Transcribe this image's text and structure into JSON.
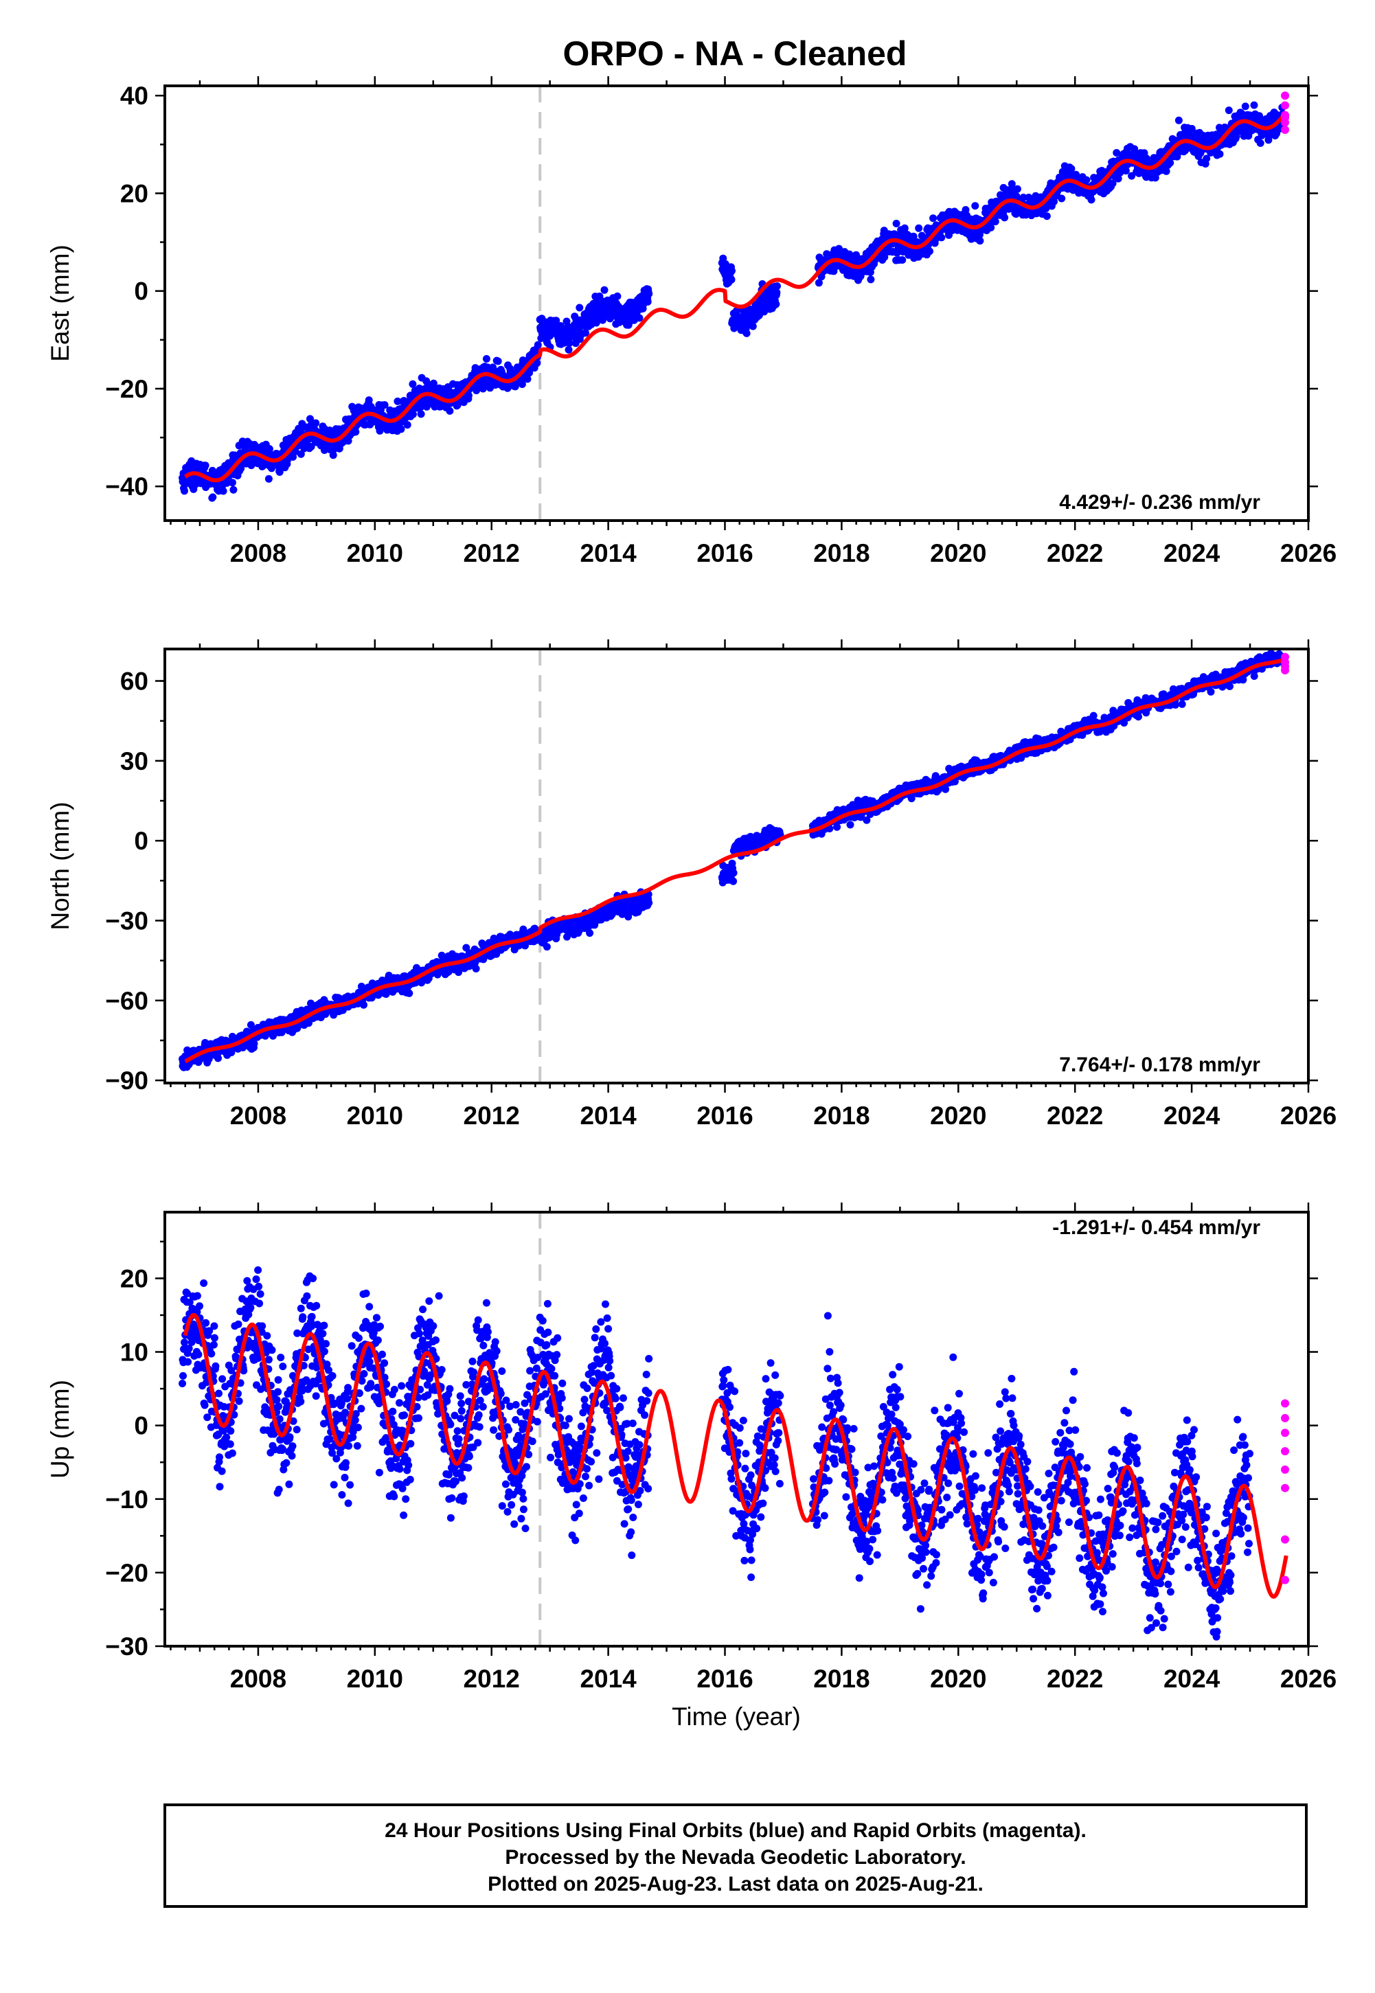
{
  "title": "ORPO  - NA - Cleaned",
  "colors": {
    "final_orbits": "#0000ff",
    "rapid_orbits": "#ff00ff",
    "model": "#ff0000",
    "equipment_change_line": "#c8c8c8"
  },
  "chart_data": [
    {
      "type": "scatter",
      "name": "east",
      "ylabel": "East (mm)",
      "xlabel": "",
      "xlim": [
        2006.4,
        2026.0
      ],
      "ylim": [
        -47,
        42
      ],
      "yticks": [
        -40,
        -20,
        0,
        20,
        40
      ],
      "xticks": [
        2008,
        2010,
        2012,
        2014,
        2016,
        2018,
        2020,
        2022,
        2024,
        2026
      ],
      "rate_text": "4.429+/- 0.236 mm/yr",
      "rate_position": "bottom-right",
      "equipment_change_year": 2012.83,
      "model": {
        "start": 2006.75,
        "end": 2025.62,
        "slope": 4.06,
        "intercept": -39.4,
        "ref_year": 2006.75,
        "amplitude": 1.6,
        "phase": 2.6,
        "offsets": [
          {
            "at": 2012.83,
            "value": 1.0
          },
          {
            "at": 2016.0,
            "value": -2.0
          }
        ]
      },
      "data_segments": [
        {
          "start": 2006.7,
          "end": 2012.8,
          "step": 0.006,
          "noise": 1.3,
          "shift": 0.0
        },
        {
          "start": 2012.83,
          "end": 2014.7,
          "step": 0.006,
          "noise": 1.3,
          "shift": 4.5
        },
        {
          "start": 2015.95,
          "end": 2016.12,
          "step": 0.006,
          "noise": 1.3,
          "shift": 5.5
        },
        {
          "start": 2016.12,
          "end": 2016.9,
          "step": 0.006,
          "noise": 1.3,
          "shift": -3.0
        },
        {
          "start": 2017.6,
          "end": 2025.58,
          "step": 0.006,
          "noise": 1.3,
          "shift": 0.0
        }
      ],
      "rapid_points": [
        [
          2025.6,
          40.0
        ],
        [
          2025.6,
          38.0
        ],
        [
          2025.6,
          36.0
        ],
        [
          2025.6,
          34.5
        ],
        [
          2025.6,
          33.0
        ],
        [
          2025.6,
          35.5
        ]
      ]
    },
    {
      "type": "scatter",
      "name": "north",
      "ylabel": "North (mm)",
      "xlabel": "",
      "xlim": [
        2006.4,
        2026.0
      ],
      "ylim": [
        -91,
        72
      ],
      "yticks": [
        -90,
        -60,
        -30,
        0,
        30,
        60
      ],
      "xticks": [
        2008,
        2010,
        2012,
        2014,
        2016,
        2018,
        2020,
        2022,
        2024,
        2026
      ],
      "rate_text": "7.764+/- 0.178 mm/yr",
      "rate_position": "bottom-right",
      "equipment_change_year": 2012.83,
      "model": {
        "start": 2006.75,
        "end": 2025.62,
        "slope": 7.95,
        "intercept": -82.5,
        "ref_year": 2006.75,
        "amplitude": 0.7,
        "phase": 1.0,
        "offsets": [
          {
            "at": 2012.83,
            "value": 1.5
          }
        ]
      },
      "data_segments": [
        {
          "start": 2006.7,
          "end": 2012.8,
          "step": 0.006,
          "noise": 1.5,
          "shift": 0.0
        },
        {
          "start": 2012.83,
          "end": 2014.7,
          "step": 0.006,
          "noise": 1.6,
          "shift": -3.5
        },
        {
          "start": 2015.95,
          "end": 2016.15,
          "step": 0.006,
          "noise": 1.5,
          "shift": -6.5
        },
        {
          "start": 2016.15,
          "end": 2016.95,
          "step": 0.006,
          "noise": 1.5,
          "shift": 3.0
        },
        {
          "start": 2017.5,
          "end": 2025.58,
          "step": 0.006,
          "noise": 1.3,
          "shift": 0.5
        }
      ],
      "rapid_points": [
        [
          2025.6,
          69.0
        ],
        [
          2025.6,
          67.0
        ],
        [
          2025.6,
          65.5
        ],
        [
          2025.6,
          64.0
        ]
      ]
    },
    {
      "type": "scatter",
      "name": "up",
      "ylabel": "Up (mm)",
      "xlabel": "Time (year)",
      "xlim": [
        2006.4,
        2026.0
      ],
      "ylim": [
        -30,
        29
      ],
      "yticks": [
        -30,
        -20,
        -10,
        0,
        10,
        20
      ],
      "xticks": [
        2008,
        2010,
        2012,
        2014,
        2016,
        2018,
        2020,
        2022,
        2024,
        2026
      ],
      "rate_text": "-1.291+/- 0.454 mm/yr",
      "rate_position": "top-right",
      "equipment_change_year": 2012.83,
      "model": {
        "start": 2006.75,
        "end": 2025.62,
        "slope": -1.29,
        "intercept": 8.0,
        "ref_year": 2006.75,
        "amplitude": 7.2,
        "phase": 2.2,
        "offsets": []
      },
      "data_segments": [
        {
          "start": 2006.7,
          "end": 2012.8,
          "step": 0.006,
          "noise": 4.0,
          "shift": 0.0
        },
        {
          "start": 2012.83,
          "end": 2014.7,
          "step": 0.006,
          "noise": 4.0,
          "shift": 1.0
        },
        {
          "start": 2015.95,
          "end": 2016.95,
          "step": 0.006,
          "noise": 4.0,
          "shift": 0.0
        },
        {
          "start": 2017.5,
          "end": 2025.0,
          "step": 0.006,
          "noise": 4.0,
          "shift": 0.0
        }
      ],
      "rapid_points": [
        [
          2025.6,
          3.0
        ],
        [
          2025.6,
          1.0
        ],
        [
          2025.6,
          -1.0
        ],
        [
          2025.6,
          -3.5
        ],
        [
          2025.6,
          -6.0
        ],
        [
          2025.6,
          -8.5
        ],
        [
          2025.6,
          -15.5
        ],
        [
          2025.6,
          -21.0
        ]
      ]
    }
  ],
  "footer": {
    "line1": "24 Hour Positions Using Final Orbits (blue) and Rapid Orbits (magenta).",
    "line2": "Processed by the Nevada Geodetic Laboratory.",
    "line3": "Plotted on 2025-Aug-23. Last data on 2025-Aug-21."
  }
}
